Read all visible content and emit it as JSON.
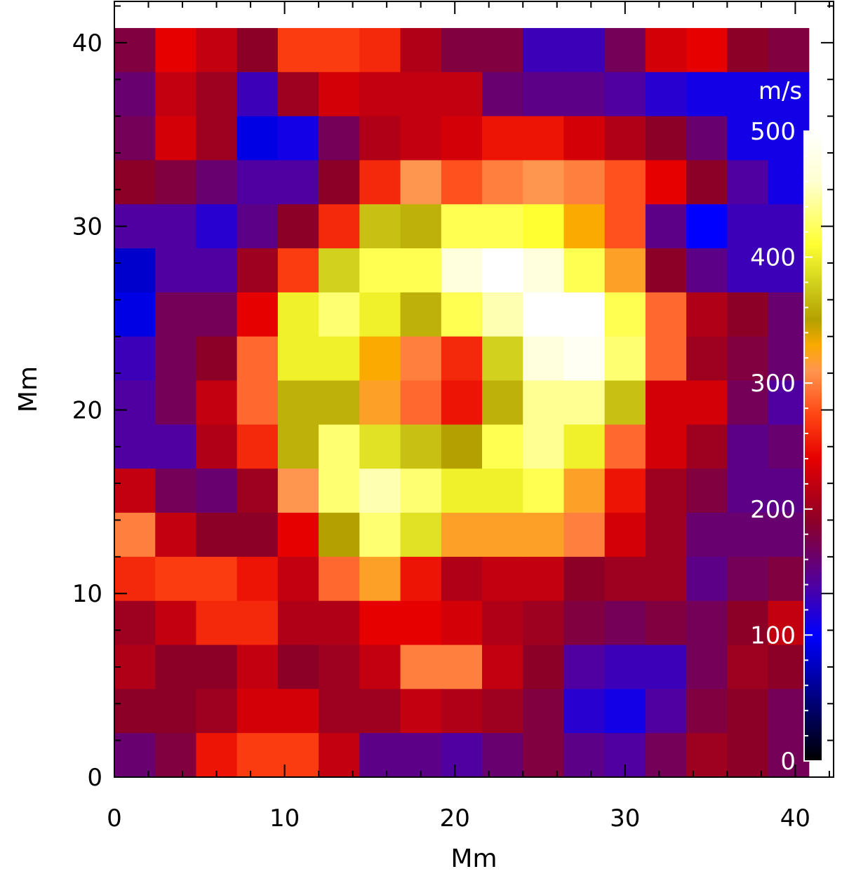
{
  "chart_data": {
    "type": "heatmap",
    "title": "",
    "xlabel": "Mm",
    "ylabel": "Mm",
    "xlim": [
      0,
      42.25
    ],
    "ylim": [
      0,
      42.25
    ],
    "x_ticks": [
      0,
      10,
      20,
      30,
      40
    ],
    "y_ticks": [
      0,
      10,
      20,
      30,
      40
    ],
    "x_tick_labels": [
      "0",
      "10",
      "20",
      "30",
      "40"
    ],
    "y_tick_labels": [
      "0",
      "10",
      "20",
      "30",
      "40"
    ],
    "cell_size": 2.4,
    "grid": false,
    "colorbar": {
      "unit_label": "m/s",
      "min": 0,
      "max": 500,
      "ticks": [
        0,
        100,
        200,
        300,
        400,
        500
      ],
      "tick_labels": [
        "0",
        "100",
        "200",
        "300",
        "400",
        "500"
      ],
      "placement": "right-inside"
    },
    "values_rows_top_to_bottom": [
      [
        180,
        240,
        220,
        190,
        270,
        270,
        260,
        210,
        180,
        180,
        130,
        130,
        170,
        230,
        240,
        190,
        180
      ],
      [
        160,
        220,
        200,
        130,
        200,
        230,
        220,
        220,
        220,
        160,
        150,
        150,
        140,
        120,
        110,
        110,
        110
      ],
      [
        170,
        230,
        200,
        90,
        110,
        170,
        210,
        220,
        230,
        250,
        250,
        230,
        210,
        190,
        160,
        110,
        110
      ],
      [
        190,
        180,
        160,
        140,
        140,
        190,
        260,
        310,
        280,
        300,
        310,
        300,
        280,
        240,
        190,
        140,
        110
      ],
      [
        140,
        140,
        120,
        150,
        190,
        260,
        370,
        360,
        420,
        420,
        410,
        330,
        280,
        150,
        100,
        130,
        130
      ],
      [
        80,
        140,
        140,
        200,
        270,
        380,
        420,
        420,
        470,
        500,
        470,
        420,
        320,
        190,
        150,
        130,
        130
      ],
      [
        90,
        170,
        170,
        240,
        400,
        430,
        400,
        360,
        420,
        450,
        500,
        500,
        420,
        290,
        210,
        190,
        160
      ],
      [
        130,
        170,
        190,
        290,
        400,
        400,
        330,
        300,
        260,
        380,
        470,
        490,
        430,
        290,
        200,
        180,
        160
      ],
      [
        140,
        170,
        220,
        290,
        360,
        360,
        320,
        290,
        250,
        360,
        440,
        440,
        370,
        230,
        230,
        170,
        140
      ],
      [
        140,
        140,
        210,
        260,
        360,
        430,
        390,
        370,
        350,
        420,
        440,
        400,
        290,
        230,
        200,
        150,
        160
      ],
      [
        220,
        170,
        160,
        200,
        310,
        430,
        450,
        430,
        400,
        400,
        420,
        320,
        250,
        200,
        180,
        150,
        150
      ],
      [
        300,
        220,
        190,
        190,
        240,
        350,
        430,
        390,
        320,
        320,
        320,
        300,
        230,
        200,
        160,
        160,
        160
      ],
      [
        260,
        270,
        270,
        250,
        220,
        290,
        320,
        250,
        210,
        220,
        220,
        190,
        200,
        200,
        150,
        170,
        180
      ],
      [
        200,
        220,
        260,
        260,
        210,
        210,
        240,
        240,
        230,
        210,
        200,
        180,
        170,
        180,
        170,
        190,
        220
      ],
      [
        210,
        190,
        190,
        220,
        190,
        200,
        220,
        300,
        300,
        220,
        190,
        140,
        130,
        130,
        170,
        200,
        190
      ],
      [
        190,
        190,
        200,
        230,
        230,
        200,
        200,
        220,
        210,
        200,
        180,
        120,
        110,
        140,
        180,
        190,
        170
      ],
      [
        160,
        180,
        250,
        270,
        270,
        220,
        150,
        150,
        140,
        160,
        180,
        150,
        140,
        170,
        200,
        190,
        170
      ]
    ]
  }
}
